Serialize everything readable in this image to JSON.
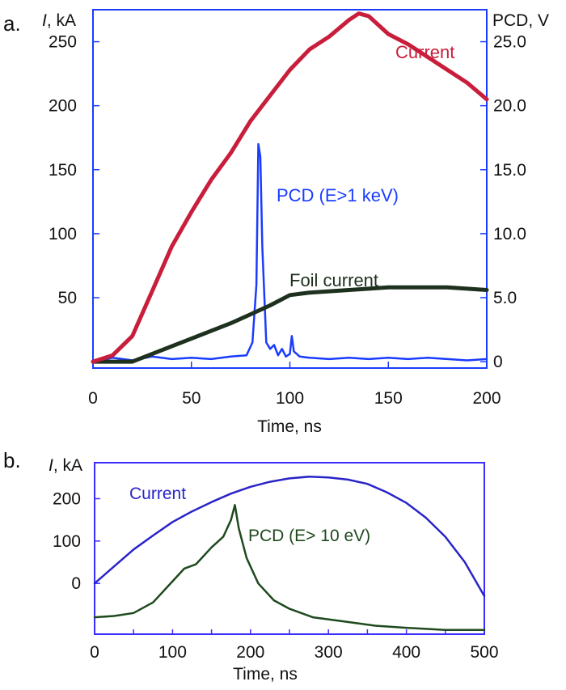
{
  "chart_data": [
    {
      "type": "line",
      "panel_label": "a.",
      "xlabel": "Time, ns",
      "ylabel_italic": "I",
      "ylabel_unit": ", kA",
      "ylabel_right": "PCD, V",
      "xlim": [
        0,
        200
      ],
      "ylim_left": [
        -5,
        275
      ],
      "ylim_right": [
        -0.5,
        27.5
      ],
      "x_ticks": [
        {
          "value": 0,
          "label": "0"
        },
        {
          "value": 50,
          "label": "50"
        },
        {
          "value": 100,
          "label": "100"
        },
        {
          "value": 150,
          "label": "150"
        },
        {
          "value": 200,
          "label": "200"
        }
      ],
      "y_left_ticks": [
        {
          "value": 50,
          "label": "50"
        },
        {
          "value": 100,
          "label": "100"
        },
        {
          "value": 150,
          "label": "150"
        },
        {
          "value": 200,
          "label": "200"
        },
        {
          "value": 250,
          "label": "250"
        }
      ],
      "y_right_ticks": [
        {
          "value": 0,
          "label": "0"
        },
        {
          "value": 5,
          "label": "5.0"
        },
        {
          "value": 10,
          "label": "10.0"
        },
        {
          "value": 15,
          "label": "15.0"
        },
        {
          "value": 20,
          "label": "20.0"
        },
        {
          "value": 25,
          "label": "25.0"
        }
      ],
      "series": [
        {
          "name": "Current",
          "axis": "left",
          "color": "#c81e3c",
          "x": [
            0,
            10,
            20,
            30,
            40,
            50,
            60,
            70,
            80,
            90,
            100,
            110,
            120,
            130,
            135,
            140,
            150,
            160,
            170,
            180,
            190,
            200
          ],
          "y": [
            0,
            5,
            20,
            55,
            90,
            117,
            142,
            163,
            188,
            208,
            228,
            244,
            254,
            267,
            272,
            270,
            256,
            248,
            238,
            228,
            218,
            205
          ]
        },
        {
          "name": "Foil current",
          "axis": "left",
          "color": "#1e301e",
          "x": [
            0,
            20,
            30,
            40,
            50,
            60,
            70,
            80,
            90,
            100,
            110,
            120,
            130,
            140,
            150,
            160,
            170,
            180,
            190,
            200
          ],
          "y": [
            0,
            0,
            6,
            12,
            18,
            24,
            30,
            37,
            44,
            52,
            54,
            55,
            56,
            57,
            58,
            58,
            58,
            58,
            57,
            56
          ]
        },
        {
          "name": "PCD (E>1 keV)",
          "axis": "right",
          "color": "#1a3cff",
          "x": [
            0,
            10,
            20,
            30,
            40,
            50,
            60,
            70,
            78,
            81,
            83,
            84,
            85,
            86,
            88,
            90,
            92,
            94,
            96,
            98,
            100,
            101,
            102,
            105,
            110,
            120,
            130,
            140,
            150,
            160,
            170,
            180,
            190,
            200
          ],
          "y": [
            0,
            0.3,
            0.1,
            0.4,
            0.2,
            0.3,
            0.2,
            0.4,
            0.5,
            1.5,
            6.0,
            17.0,
            16.0,
            9.0,
            1.5,
            1.0,
            1.3,
            0.5,
            1.0,
            0.4,
            0.6,
            2.0,
            0.8,
            0.4,
            0.3,
            0.2,
            0.3,
            0.2,
            0.3,
            0.2,
            0.3,
            0.2,
            0.1,
            0.2
          ]
        }
      ],
      "annotations": [
        {
          "text": "Current",
          "color": "#c81e3c",
          "series": "Current"
        },
        {
          "text": "PCD (E>1 keV)",
          "color": "#1a3cff",
          "series": "PCD (E>1 keV)"
        },
        {
          "text": "Foil current",
          "color": "#1e301e",
          "series": "Foil current"
        }
      ]
    },
    {
      "type": "line",
      "panel_label": "b.",
      "xlabel": "Time, ns",
      "ylabel_italic": "I",
      "ylabel_unit": ", kA",
      "xlim": [
        0,
        500
      ],
      "ylim": [
        -120,
        285
      ],
      "x_ticks": [
        {
          "value": 0,
          "label": "0"
        },
        {
          "value": 100,
          "label": "100"
        },
        {
          "value": 200,
          "label": "200"
        },
        {
          "value": 300,
          "label": "300"
        },
        {
          "value": 400,
          "label": "400"
        },
        {
          "value": 500,
          "label": "500"
        }
      ],
      "y_ticks": [
        {
          "value": 0,
          "label": "0"
        },
        {
          "value": 100,
          "label": "100"
        },
        {
          "value": 200,
          "label": "200"
        }
      ],
      "series": [
        {
          "name": "Current",
          "color": "#2a24c8",
          "x": [
            0,
            25,
            50,
            75,
            100,
            125,
            150,
            175,
            200,
            225,
            250,
            275,
            300,
            325,
            350,
            375,
            400,
            425,
            450,
            475,
            500
          ],
          "y": [
            0,
            40,
            80,
            113,
            145,
            170,
            192,
            212,
            228,
            240,
            248,
            252,
            250,
            245,
            235,
            215,
            190,
            155,
            110,
            50,
            -30
          ]
        },
        {
          "name": "PCD (E> 10 eV)",
          "color": "#1e4a1e",
          "x": [
            0,
            25,
            50,
            75,
            100,
            115,
            130,
            150,
            165,
            175,
            180,
            185,
            195,
            210,
            230,
            250,
            280,
            320,
            360,
            400,
            450,
            500
          ],
          "y": [
            -80,
            -77,
            -70,
            -45,
            5,
            35,
            45,
            85,
            110,
            150,
            185,
            130,
            60,
            0,
            -40,
            -60,
            -80,
            -90,
            -100,
            -105,
            -110,
            -110
          ]
        }
      ],
      "annotations": [
        {
          "text": "Current",
          "color": "#2a24c8",
          "series": "Current"
        },
        {
          "text": "PCD (E> 10 eV)",
          "color": "#1e4a1e",
          "series": "PCD (E> 10 eV)"
        }
      ]
    }
  ]
}
